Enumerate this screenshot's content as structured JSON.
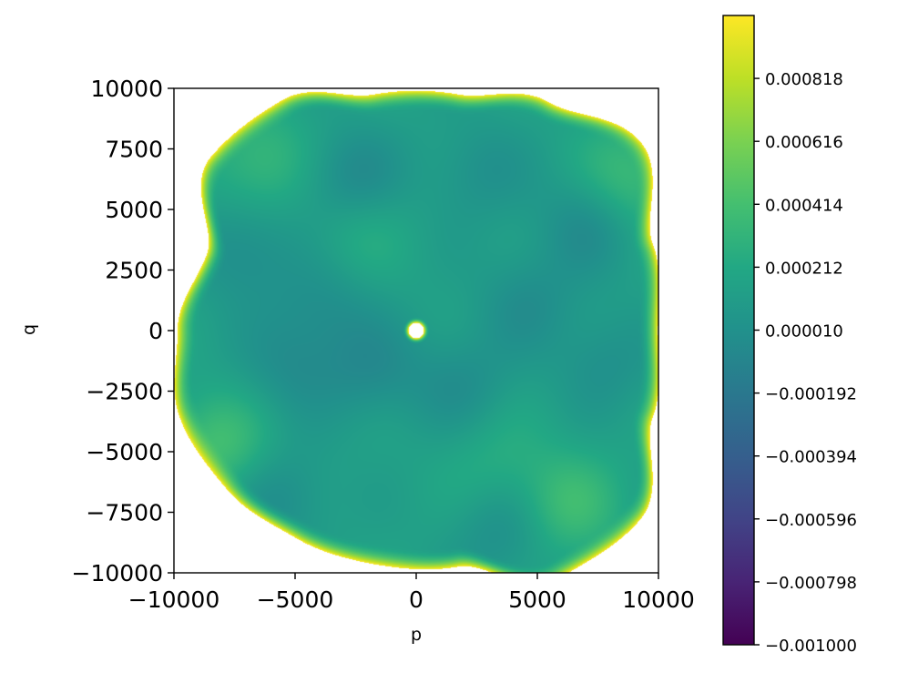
{
  "chart_data": {
    "type": "heatmap",
    "title": "",
    "xlabel": "p",
    "ylabel": "q",
    "xlim": [
      -10000,
      10000
    ],
    "ylim": [
      -10000,
      10000
    ],
    "x_ticks": [
      -10000,
      -5000,
      0,
      5000,
      10000
    ],
    "y_ticks": [
      10000,
      7500,
      5000,
      2500,
      0,
      -2500,
      -5000,
      -7500,
      -10000
    ],
    "x_tick_labels": [
      "−10000",
      "−5000",
      "0",
      "5000",
      "10000"
    ],
    "y_tick_labels": [
      "10000",
      "7500",
      "5000",
      "2500",
      "0",
      "−2500",
      "−5000",
      "−7500",
      "−10000"
    ],
    "colormap": "viridis",
    "colorbar": {
      "vmin": -0.001,
      "vmax": 0.00102,
      "ticks": [
        0.000818,
        0.000616,
        0.000414,
        0.000212,
        1e-05,
        -0.000192,
        -0.000394,
        -0.000596,
        -0.000798,
        -0.001
      ],
      "tick_labels": [
        "0.000818",
        "0.000616",
        "0.000414",
        "0.000212",
        "0.000010",
        "−0.000192",
        "−0.000394",
        "−0.000596",
        "−0.000798",
        "−0.001000"
      ]
    },
    "field": {
      "interior_value": 0.00015,
      "edge_value": 0.00102,
      "hole_center": [
        0,
        0
      ],
      "hole_radius": 320,
      "boundary_radius": [
        {
          "angle_deg": 0,
          "r": 9980
        },
        {
          "angle_deg": 20,
          "r": 10400
        },
        {
          "angle_deg": 40,
          "r": 12100
        },
        {
          "angle_deg": 60,
          "r": 10900
        },
        {
          "angle_deg": 80,
          "r": 9900
        },
        {
          "angle_deg": 100,
          "r": 9900
        },
        {
          "angle_deg": 120,
          "r": 11000
        },
        {
          "angle_deg": 140,
          "r": 11100
        },
        {
          "angle_deg": 160,
          "r": 9200
        },
        {
          "angle_deg": 180,
          "r": 9850
        },
        {
          "angle_deg": 200,
          "r": 10400
        },
        {
          "angle_deg": 220,
          "r": 10200
        },
        {
          "angle_deg": 240,
          "r": 9900
        },
        {
          "angle_deg": 260,
          "r": 9800
        },
        {
          "angle_deg": 280,
          "r": 9900
        },
        {
          "angle_deg": 300,
          "r": 11800
        },
        {
          "angle_deg": 320,
          "r": 12100
        },
        {
          "angle_deg": 340,
          "r": 10400
        }
      ],
      "bumps": [
        {
          "p": -6500,
          "q": 7000,
          "v": 0.00052
        },
        {
          "p": 8800,
          "q": 6200,
          "v": 0.0006
        },
        {
          "p": -8200,
          "q": -4800,
          "v": 0.00062
        },
        {
          "p": 6200,
          "q": -7200,
          "v": 0.00058
        },
        {
          "p": -2600,
          "q": 4000,
          "v": 0.00036
        },
        {
          "p": 3200,
          "q": -5400,
          "v": 0.00034
        },
        {
          "p": -2700,
          "q": 6300,
          "v": -0.00022
        },
        {
          "p": 7200,
          "q": 4500,
          "v": -0.0002
        },
        {
          "p": -7200,
          "q": 3300,
          "v": -0.00018
        },
        {
          "p": -3800,
          "q": 1000,
          "v": -0.00012
        },
        {
          "p": 4600,
          "q": 1200,
          "v": -0.00012
        },
        {
          "p": -1800,
          "q": -1700,
          "v": -0.00016
        },
        {
          "p": 1900,
          "q": -2200,
          "v": -0.00012
        },
        {
          "p": -5600,
          "q": -6900,
          "v": -0.00016
        },
        {
          "p": 3600,
          "q": -8300,
          "v": -0.00014
        },
        {
          "p": -5300,
          "q": -1500,
          "v": -0.00012
        },
        {
          "p": 7800,
          "q": -1300,
          "v": -0.0001
        },
        {
          "p": 2600,
          "q": 6600,
          "v": -0.0001
        }
      ]
    }
  }
}
